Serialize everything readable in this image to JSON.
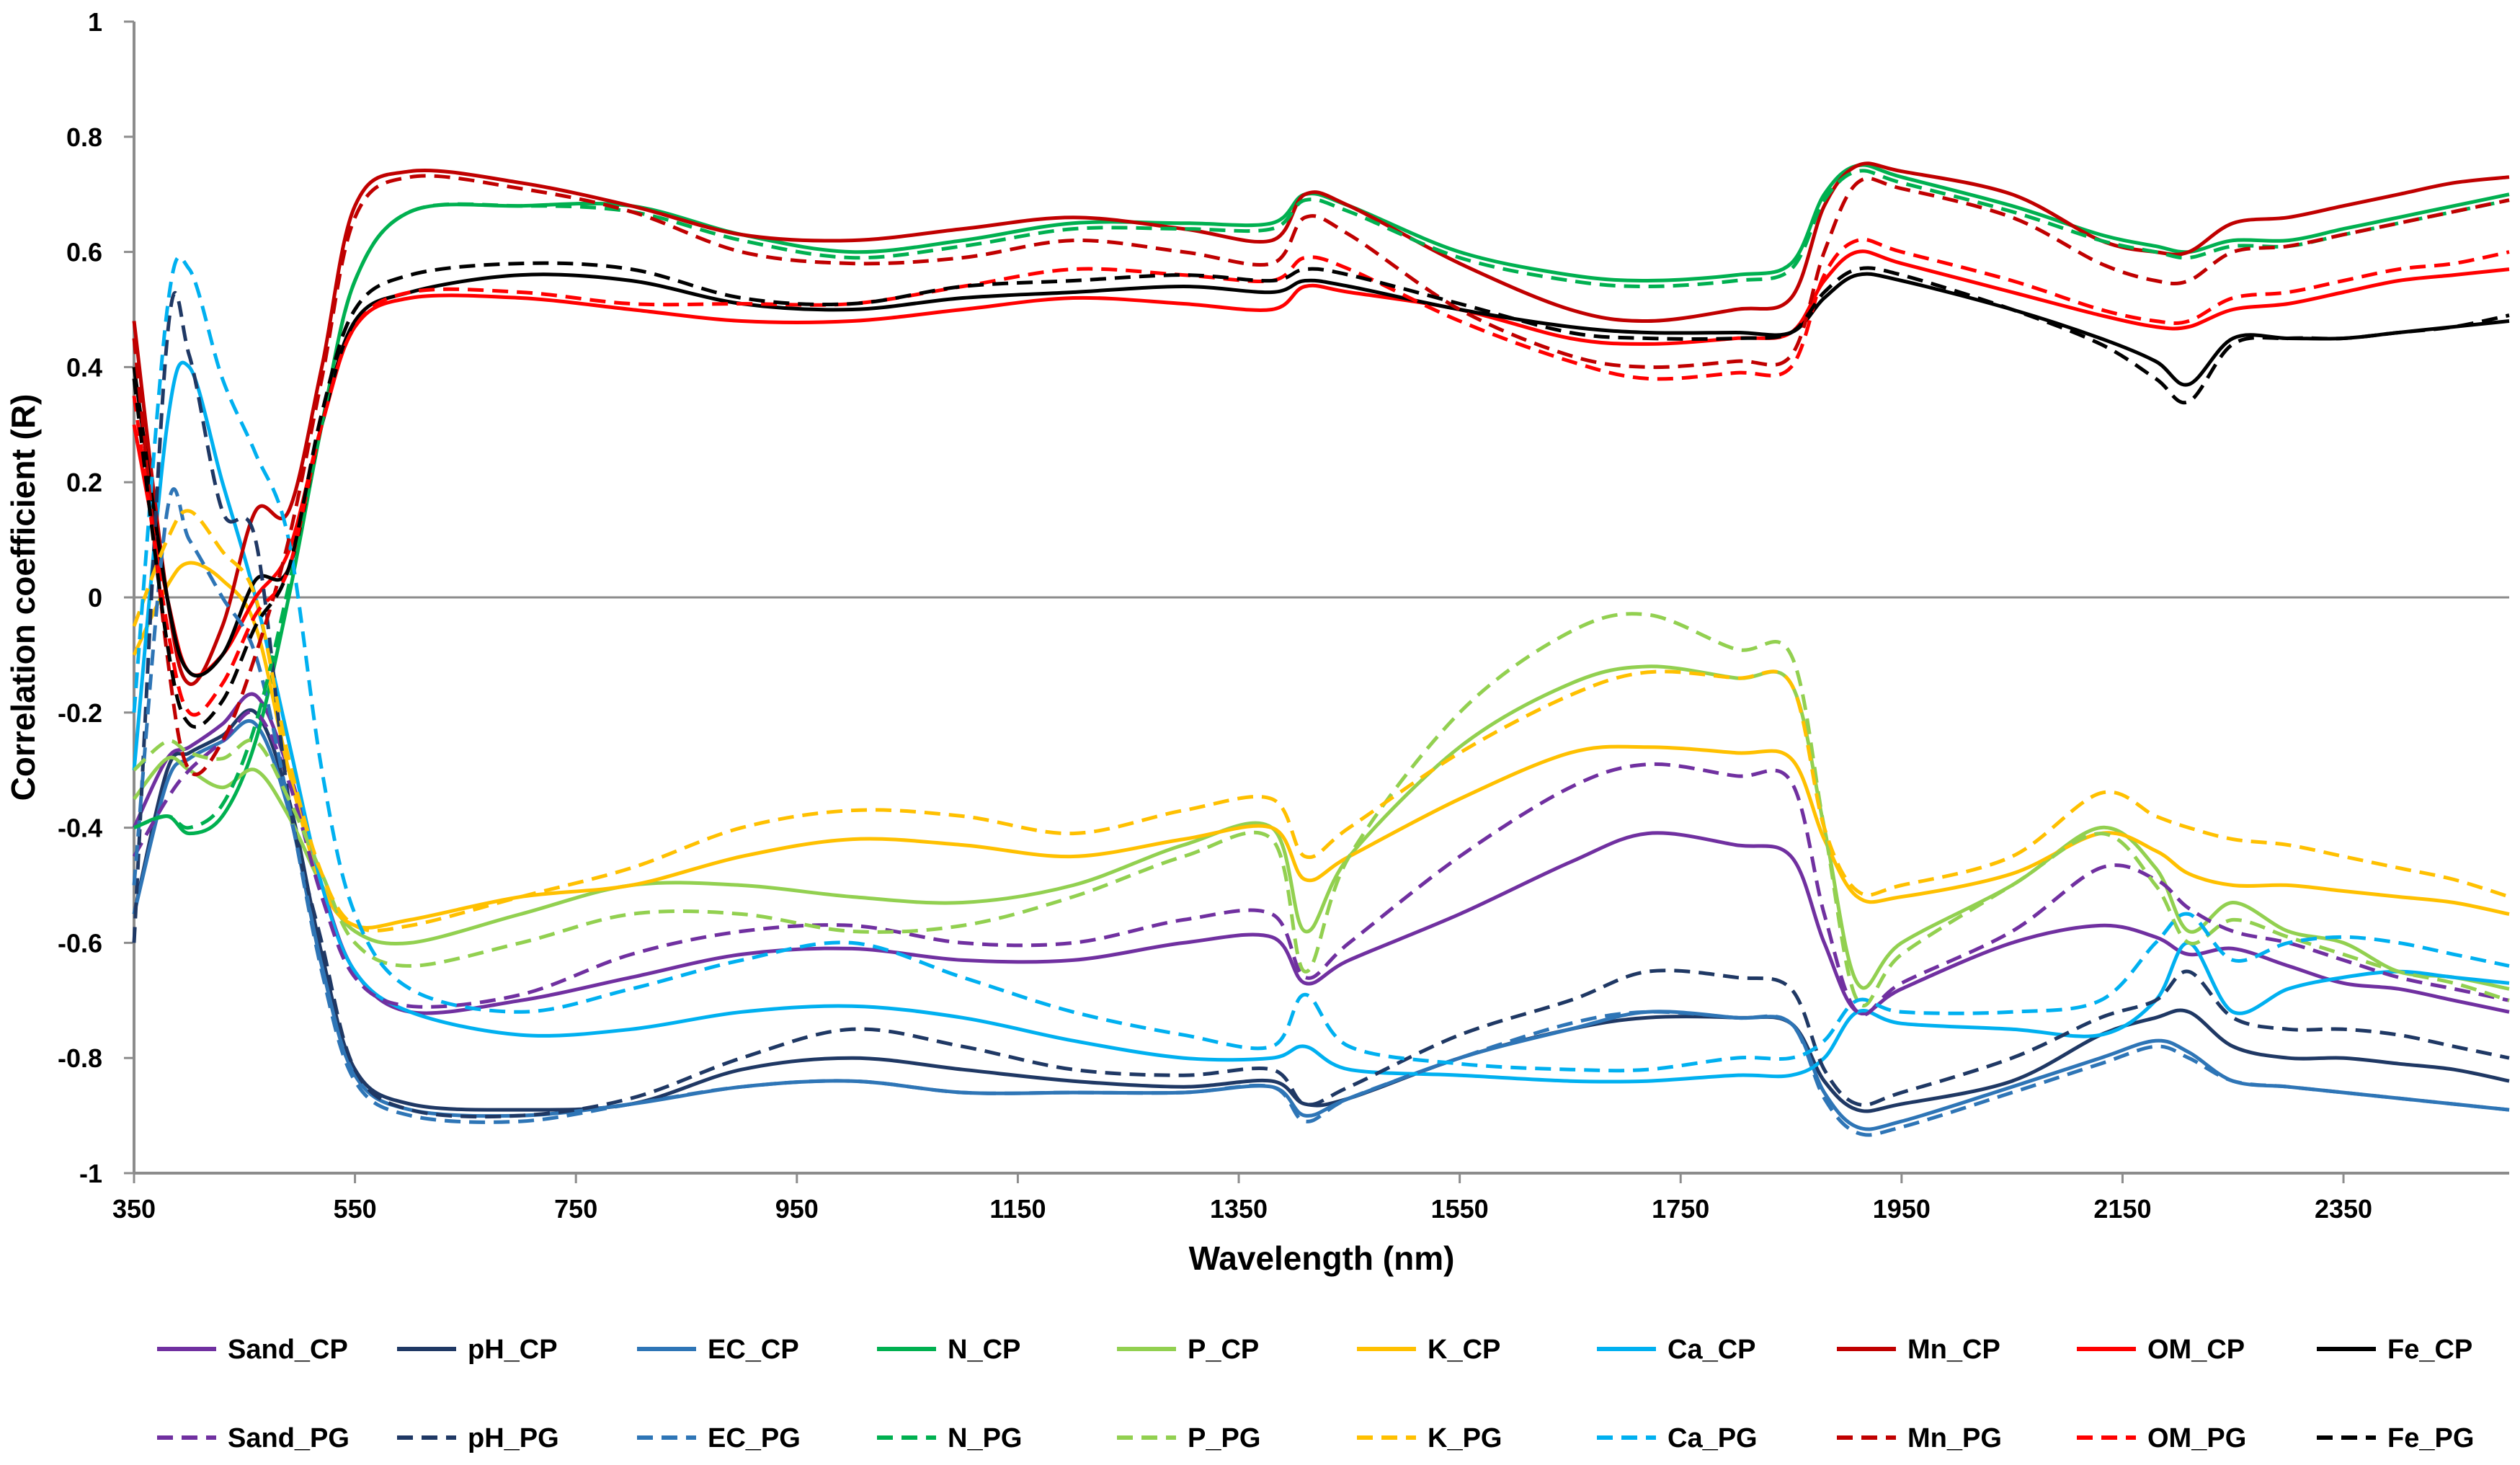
{
  "chart_data": {
    "type": "line",
    "title": "",
    "xlabel": "Wavelength (nm)",
    "ylabel": "Correlation coefficient (R)",
    "xlim": [
      350,
      2500
    ],
    "ylim": [
      -1,
      1
    ],
    "x_ticks": [
      350,
      550,
      750,
      950,
      1150,
      1350,
      1550,
      1750,
      1950,
      2150,
      2350
    ],
    "y_ticks": [
      -1,
      -0.8,
      -0.6,
      -0.4,
      -0.2,
      0,
      0.2,
      0.4,
      0.6,
      0.8,
      1
    ],
    "y_tick_labels": [
      "-1",
      "-0.8",
      "-0.6",
      "-0.4",
      "-0.2",
      "0",
      "0.2",
      "0.4",
      "0.6",
      "0.8",
      "1"
    ],
    "grid": false,
    "legend_position": "bottom",
    "x": [
      350,
      380,
      400,
      430,
      460,
      490,
      520,
      550,
      600,
      700,
      800,
      900,
      1000,
      1100,
      1200,
      1300,
      1380,
      1410,
      1450,
      1550,
      1650,
      1720,
      1800,
      1850,
      1880,
      1910,
      1950,
      2050,
      2130,
      2180,
      2210,
      2250,
      2300,
      2350,
      2400,
      2450,
      2500
    ],
    "series": [
      {
        "name": "Sand_CP",
        "color": "#7030A0",
        "dash": false,
        "values": [
          -0.4,
          -0.28,
          -0.26,
          -0.22,
          -0.17,
          -0.3,
          -0.5,
          -0.65,
          -0.72,
          -0.7,
          -0.66,
          -0.62,
          -0.61,
          -0.63,
          -0.63,
          -0.6,
          -0.59,
          -0.67,
          -0.63,
          -0.55,
          -0.46,
          -0.41,
          -0.43,
          -0.45,
          -0.6,
          -0.72,
          -0.68,
          -0.6,
          -0.57,
          -0.59,
          -0.62,
          -0.61,
          -0.64,
          -0.67,
          -0.68,
          -0.7,
          -0.72
        ]
      },
      {
        "name": "pH_CP",
        "color": "#1F3864",
        "dash": false,
        "values": [
          -0.55,
          -0.3,
          -0.27,
          -0.24,
          -0.2,
          -0.35,
          -0.62,
          -0.82,
          -0.88,
          -0.89,
          -0.88,
          -0.82,
          -0.8,
          -0.82,
          -0.84,
          -0.85,
          -0.84,
          -0.88,
          -0.87,
          -0.8,
          -0.75,
          -0.73,
          -0.73,
          -0.74,
          -0.84,
          -0.89,
          -0.88,
          -0.84,
          -0.76,
          -0.73,
          -0.72,
          -0.78,
          -0.8,
          -0.8,
          -0.81,
          -0.82,
          -0.84
        ]
      },
      {
        "name": "EC_CP",
        "color": "#2E75B6",
        "dash": false,
        "values": [
          -0.55,
          -0.32,
          -0.28,
          -0.25,
          -0.22,
          -0.37,
          -0.64,
          -0.83,
          -0.89,
          -0.9,
          -0.88,
          -0.85,
          -0.84,
          -0.86,
          -0.86,
          -0.86,
          -0.85,
          -0.9,
          -0.87,
          -0.8,
          -0.75,
          -0.72,
          -0.73,
          -0.74,
          -0.86,
          -0.92,
          -0.91,
          -0.85,
          -0.8,
          -0.77,
          -0.79,
          -0.84,
          -0.85,
          -0.86,
          -0.87,
          -0.88,
          -0.89
        ]
      },
      {
        "name": "N_CP",
        "color": "#00B050",
        "dash": false,
        "values": [
          -0.4,
          -0.38,
          -0.41,
          -0.38,
          -0.25,
          0.0,
          0.3,
          0.55,
          0.67,
          0.68,
          0.68,
          0.63,
          0.6,
          0.62,
          0.65,
          0.65,
          0.65,
          0.7,
          0.68,
          0.6,
          0.56,
          0.55,
          0.56,
          0.58,
          0.7,
          0.75,
          0.73,
          0.68,
          0.63,
          0.61,
          0.6,
          0.62,
          0.62,
          0.64,
          0.66,
          0.68,
          0.7
        ]
      },
      {
        "name": "P_CP",
        "color": "#92D050",
        "dash": false,
        "values": [
          -0.35,
          -0.28,
          -0.3,
          -0.33,
          -0.3,
          -0.38,
          -0.5,
          -0.58,
          -0.6,
          -0.55,
          -0.5,
          -0.5,
          -0.52,
          -0.53,
          -0.5,
          -0.43,
          -0.4,
          -0.58,
          -0.45,
          -0.26,
          -0.15,
          -0.12,
          -0.14,
          -0.15,
          -0.4,
          -0.67,
          -0.6,
          -0.5,
          -0.4,
          -0.47,
          -0.58,
          -0.53,
          -0.58,
          -0.6,
          -0.65,
          -0.66,
          -0.68
        ]
      },
      {
        "name": "K_CP",
        "color": "#FFC000",
        "dash": false,
        "values": [
          -0.1,
          0.02,
          0.06,
          0.03,
          -0.05,
          -0.3,
          -0.5,
          -0.57,
          -0.56,
          -0.52,
          -0.5,
          -0.45,
          -0.42,
          -0.43,
          -0.45,
          -0.42,
          -0.4,
          -0.49,
          -0.45,
          -0.35,
          -0.27,
          -0.26,
          -0.27,
          -0.28,
          -0.42,
          -0.52,
          -0.52,
          -0.48,
          -0.41,
          -0.44,
          -0.48,
          -0.5,
          -0.5,
          -0.51,
          -0.52,
          -0.53,
          -0.55
        ]
      },
      {
        "name": "Ca_CP",
        "color": "#00B0F0",
        "dash": false,
        "values": [
          -0.3,
          0.3,
          0.4,
          0.2,
          0.0,
          -0.25,
          -0.5,
          -0.65,
          -0.72,
          -0.76,
          -0.75,
          -0.72,
          -0.71,
          -0.73,
          -0.77,
          -0.8,
          -0.8,
          -0.78,
          -0.82,
          -0.83,
          -0.84,
          -0.84,
          -0.83,
          -0.83,
          -0.8,
          -0.72,
          -0.74,
          -0.75,
          -0.76,
          -0.7,
          -0.6,
          -0.72,
          -0.68,
          -0.66,
          -0.65,
          -0.66,
          -0.67
        ]
      },
      {
        "name": "Mn_CP",
        "color": "#C00000",
        "dash": false,
        "values": [
          0.48,
          0.0,
          -0.15,
          -0.05,
          0.15,
          0.15,
          0.4,
          0.68,
          0.74,
          0.72,
          0.68,
          0.63,
          0.62,
          0.64,
          0.66,
          0.64,
          0.62,
          0.7,
          0.68,
          0.58,
          0.5,
          0.48,
          0.5,
          0.52,
          0.68,
          0.75,
          0.74,
          0.7,
          0.62,
          0.6,
          0.6,
          0.65,
          0.66,
          0.68,
          0.7,
          0.72,
          0.73
        ]
      },
      {
        "name": "OM_CP",
        "color": "#FF0000",
        "dash": false,
        "values": [
          0.3,
          0.0,
          -0.13,
          -0.1,
          0.0,
          0.08,
          0.3,
          0.47,
          0.52,
          0.52,
          0.5,
          0.48,
          0.48,
          0.5,
          0.52,
          0.51,
          0.5,
          0.54,
          0.53,
          0.5,
          0.45,
          0.44,
          0.45,
          0.46,
          0.55,
          0.6,
          0.58,
          0.53,
          0.49,
          0.47,
          0.47,
          0.5,
          0.51,
          0.53,
          0.55,
          0.56,
          0.57
        ]
      },
      {
        "name": "Fe_CP",
        "color": "#000000",
        "dash": false,
        "values": [
          0.4,
          0.0,
          -0.13,
          -0.1,
          0.03,
          0.05,
          0.3,
          0.48,
          0.53,
          0.56,
          0.55,
          0.51,
          0.5,
          0.52,
          0.53,
          0.54,
          0.53,
          0.55,
          0.54,
          0.5,
          0.47,
          0.46,
          0.46,
          0.46,
          0.52,
          0.56,
          0.55,
          0.5,
          0.45,
          0.41,
          0.37,
          0.45,
          0.45,
          0.45,
          0.46,
          0.47,
          0.48
        ]
      },
      {
        "name": "Sand_PG",
        "color": "#7030A0",
        "dash": true,
        "values": [
          -0.45,
          -0.35,
          -0.3,
          -0.25,
          -0.2,
          -0.32,
          -0.52,
          -0.66,
          -0.71,
          -0.69,
          -0.62,
          -0.58,
          -0.57,
          -0.6,
          -0.6,
          -0.56,
          -0.55,
          -0.66,
          -0.6,
          -0.45,
          -0.33,
          -0.29,
          -0.31,
          -0.32,
          -0.55,
          -0.72,
          -0.67,
          -0.58,
          -0.47,
          -0.49,
          -0.54,
          -0.58,
          -0.6,
          -0.63,
          -0.66,
          -0.68,
          -0.7
        ]
      },
      {
        "name": "pH_PG",
        "color": "#1F3864",
        "dash": true,
        "values": [
          -0.6,
          0.45,
          0.42,
          0.15,
          0.1,
          -0.35,
          -0.6,
          -0.82,
          -0.89,
          -0.9,
          -0.87,
          -0.8,
          -0.75,
          -0.78,
          -0.82,
          -0.83,
          -0.82,
          -0.88,
          -0.85,
          -0.76,
          -0.7,
          -0.65,
          -0.66,
          -0.68,
          -0.82,
          -0.88,
          -0.86,
          -0.8,
          -0.73,
          -0.7,
          -0.65,
          -0.73,
          -0.75,
          -0.75,
          -0.76,
          -0.78,
          -0.8
        ]
      },
      {
        "name": "EC_PG",
        "color": "#2E75B6",
        "dash": true,
        "values": [
          -0.5,
          0.15,
          0.1,
          0.0,
          -0.1,
          -0.36,
          -0.65,
          -0.84,
          -0.9,
          -0.91,
          -0.88,
          -0.85,
          -0.84,
          -0.86,
          -0.86,
          -0.86,
          -0.85,
          -0.91,
          -0.87,
          -0.8,
          -0.74,
          -0.72,
          -0.73,
          -0.74,
          -0.87,
          -0.93,
          -0.92,
          -0.86,
          -0.81,
          -0.78,
          -0.8,
          -0.84,
          -0.85,
          -0.86,
          -0.87,
          -0.88,
          -0.89
        ]
      },
      {
        "name": "N_PG",
        "color": "#00B050",
        "dash": true,
        "values": [
          -0.4,
          -0.38,
          -0.4,
          -0.36,
          -0.22,
          0.02,
          0.3,
          0.55,
          0.67,
          0.68,
          0.67,
          0.62,
          0.59,
          0.61,
          0.64,
          0.64,
          0.64,
          0.69,
          0.67,
          0.59,
          0.55,
          0.54,
          0.55,
          0.57,
          0.69,
          0.74,
          0.72,
          0.67,
          0.62,
          0.6,
          0.59,
          0.61,
          0.61,
          0.63,
          0.65,
          0.67,
          0.69
        ]
      },
      {
        "name": "P_PG",
        "color": "#92D050",
        "dash": true,
        "values": [
          -0.3,
          -0.25,
          -0.27,
          -0.28,
          -0.25,
          -0.35,
          -0.48,
          -0.6,
          -0.64,
          -0.6,
          -0.55,
          -0.55,
          -0.58,
          -0.57,
          -0.52,
          -0.45,
          -0.42,
          -0.65,
          -0.45,
          -0.2,
          -0.06,
          -0.03,
          -0.09,
          -0.1,
          -0.4,
          -0.7,
          -0.62,
          -0.5,
          -0.41,
          -0.5,
          -0.6,
          -0.56,
          -0.59,
          -0.62,
          -0.65,
          -0.67,
          -0.7
        ]
      },
      {
        "name": "K_PG",
        "color": "#FFC000",
        "dash": true,
        "values": [
          -0.05,
          0.1,
          0.15,
          0.08,
          0.0,
          -0.28,
          -0.48,
          -0.57,
          -0.57,
          -0.52,
          -0.47,
          -0.4,
          -0.37,
          -0.38,
          -0.41,
          -0.37,
          -0.35,
          -0.45,
          -0.4,
          -0.27,
          -0.17,
          -0.13,
          -0.14,
          -0.15,
          -0.4,
          -0.51,
          -0.5,
          -0.45,
          -0.34,
          -0.38,
          -0.4,
          -0.42,
          -0.43,
          -0.45,
          -0.47,
          -0.49,
          -0.52
        ]
      },
      {
        "name": "Ca_PG",
        "color": "#00B0F0",
        "dash": true,
        "values": [
          -0.2,
          0.5,
          0.57,
          0.38,
          0.25,
          0.1,
          -0.3,
          -0.55,
          -0.68,
          -0.72,
          -0.68,
          -0.63,
          -0.6,
          -0.66,
          -0.72,
          -0.76,
          -0.78,
          -0.69,
          -0.78,
          -0.81,
          -0.82,
          -0.82,
          -0.8,
          -0.8,
          -0.77,
          -0.7,
          -0.72,
          -0.72,
          -0.7,
          -0.6,
          -0.55,
          -0.63,
          -0.6,
          -0.59,
          -0.6,
          -0.62,
          -0.64
        ]
      },
      {
        "name": "Mn_PG",
        "color": "#C00000",
        "dash": true,
        "values": [
          0.45,
          -0.1,
          -0.3,
          -0.25,
          -0.1,
          0.1,
          0.38,
          0.66,
          0.73,
          0.71,
          0.67,
          0.6,
          0.58,
          0.59,
          0.62,
          0.6,
          0.58,
          0.66,
          0.63,
          0.5,
          0.42,
          0.4,
          0.41,
          0.42,
          0.6,
          0.72,
          0.71,
          0.66,
          0.58,
          0.55,
          0.55,
          0.6,
          0.61,
          0.63,
          0.65,
          0.67,
          0.69
        ]
      },
      {
        "name": "OM_PG",
        "color": "#FF0000",
        "dash": true,
        "values": [
          0.35,
          -0.05,
          -0.2,
          -0.15,
          -0.03,
          0.05,
          0.3,
          0.47,
          0.53,
          0.53,
          0.51,
          0.51,
          0.51,
          0.54,
          0.57,
          0.56,
          0.55,
          0.59,
          0.57,
          0.48,
          0.41,
          0.38,
          0.39,
          0.4,
          0.56,
          0.62,
          0.6,
          0.55,
          0.5,
          0.48,
          0.48,
          0.52,
          0.53,
          0.55,
          0.57,
          0.58,
          0.6
        ]
      },
      {
        "name": "Fe_PG",
        "color": "#000000",
        "dash": true,
        "values": [
          0.38,
          -0.08,
          -0.22,
          -0.18,
          -0.05,
          0.05,
          0.32,
          0.5,
          0.56,
          0.58,
          0.57,
          0.52,
          0.51,
          0.54,
          0.55,
          0.56,
          0.55,
          0.57,
          0.56,
          0.51,
          0.46,
          0.45,
          0.45,
          0.46,
          0.53,
          0.57,
          0.56,
          0.5,
          0.44,
          0.38,
          0.34,
          0.44,
          0.45,
          0.45,
          0.46,
          0.47,
          0.49
        ]
      }
    ]
  }
}
